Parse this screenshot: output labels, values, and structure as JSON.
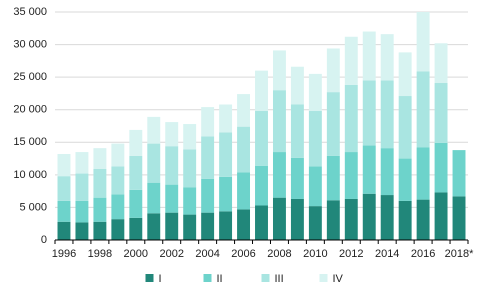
{
  "chart_data": {
    "type": "bar",
    "stacked": true,
    "categories": [
      "1996",
      null,
      "1998",
      null,
      "2000",
      null,
      "2002",
      null,
      "2004",
      null,
      "2006",
      null,
      "2008",
      null,
      "2010",
      null,
      "2012",
      null,
      "2014",
      null,
      "2016",
      null,
      "2018*"
    ],
    "series": [
      {
        "name": "I",
        "color": "#21877a",
        "values": [
          2800,
          2700,
          2800,
          3200,
          3400,
          4100,
          4200,
          3900,
          4200,
          4400,
          4700,
          5300,
          6500,
          6300,
          5200,
          6100,
          6300,
          7100,
          6900,
          6000,
          6200,
          7300,
          6700
        ]
      },
      {
        "name": "II",
        "color": "#6dd3cb",
        "values": [
          3200,
          3300,
          3700,
          3800,
          4300,
          4700,
          4300,
          4200,
          5200,
          5300,
          5700,
          6100,
          7000,
          6300,
          6100,
          6800,
          7200,
          7400,
          7200,
          6500,
          8000,
          7600,
          7100
        ]
      },
      {
        "name": "III",
        "color": "#a9e5e1",
        "values": [
          3800,
          4200,
          4400,
          4300,
          5200,
          6000,
          5900,
          5800,
          6500,
          6800,
          7000,
          8400,
          9500,
          8200,
          8500,
          9800,
          10300,
          10000,
          10400,
          9600,
          11700,
          9200,
          null
        ]
      },
      {
        "name": "IV",
        "color": "#d7f3f1",
        "values": [
          3400,
          3300,
          3200,
          3500,
          4000,
          4100,
          3700,
          3900,
          4500,
          4300,
          5000,
          6200,
          6100,
          5800,
          5700,
          6700,
          7400,
          7500,
          7100,
          6700,
          9100,
          6100,
          null
        ]
      }
    ],
    "ylim": [
      0,
      35000
    ],
    "yticks": [
      0,
      {
        "value": 5000,
        "label": "5 000"
      },
      {
        "value": 10000,
        "label": "10 000"
      },
      {
        "value": 15000,
        "label": "15 000"
      },
      {
        "value": 20000,
        "label": "20 000"
      },
      {
        "value": 25000,
        "label": "25 000"
      },
      {
        "value": 30000,
        "label": "30 000"
      },
      {
        "value": 35000,
        "label": "35 000"
      }
    ],
    "grid": true
  }
}
